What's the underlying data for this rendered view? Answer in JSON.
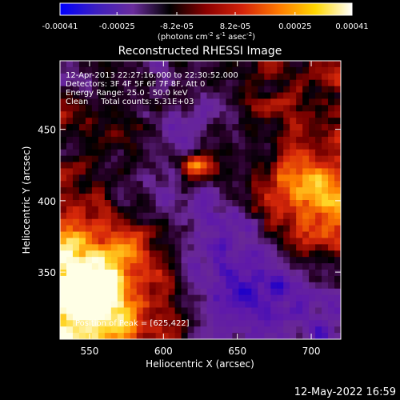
{
  "colorbar": {
    "tick_labels": [
      "-0.00041",
      "-0.00025",
      "-8.2e-05",
      "8.2e-05",
      "0.00025",
      "0.00041"
    ],
    "tick_values": [
      -0.00041,
      -0.00025,
      -8.2e-05,
      8.2e-05,
      0.00025,
      0.00041
    ],
    "range": [
      -0.00041,
      0.00041
    ],
    "units_main": "(photons cm",
    "units_sup1": "-2",
    "units_mid": " s",
    "units_sup2": "-1",
    "units_mid2": " asec",
    "units_sup3": "-2",
    "units_end": ")",
    "colors": [
      "#0000ff",
      "#3d1fbf",
      "#6a2c9c",
      "#000000",
      "#8b0000",
      "#d4230a",
      "#ff7a00",
      "#ffd700",
      "#ffffff"
    ]
  },
  "chart_data": {
    "type": "heatmap",
    "title": "Reconstructed RHESSI Image",
    "xlabel": "Heliocentric X (arcsec)",
    "ylabel": "Heliocentric Y (arcsec)",
    "xlim": [
      530,
      720
    ],
    "ylim": [
      303,
      498
    ],
    "x_ticks": [
      550,
      600,
      650,
      700
    ],
    "y_ticks": [
      350,
      400,
      450
    ],
    "peak": [
      625,
      422
    ],
    "grid": false
  },
  "annotations": {
    "time_range": "12-Apr-2013 22:27:16.000 to 22:30:52.000",
    "detectors": "Detectors: 3F 4F 5F 6F 7F 8F, Att 0",
    "energy_range": "Energy Range: 25.0 - 50.0 keV",
    "method_counts": "Clean     Total counts: 5.31E+03",
    "peak_position": "Position of Peak = [625,422]"
  },
  "footer": {
    "timestamp": "12-May-2022 16:59"
  }
}
